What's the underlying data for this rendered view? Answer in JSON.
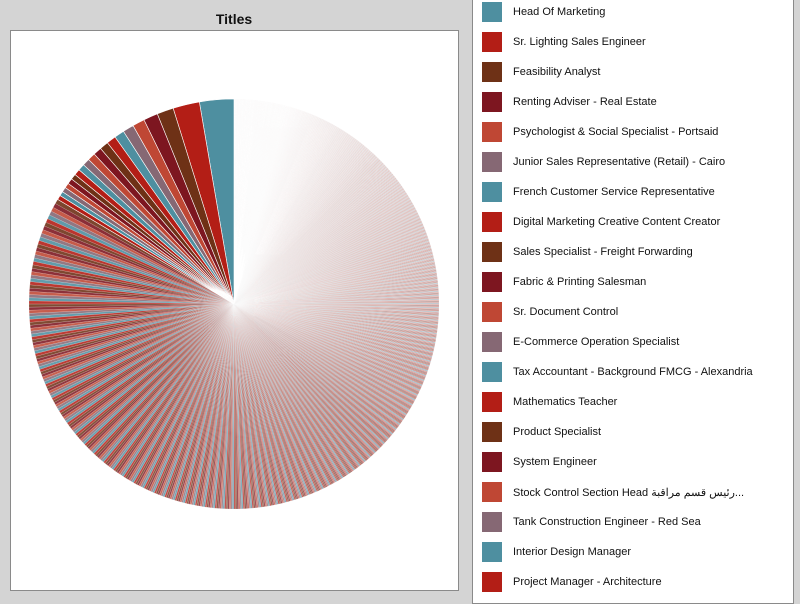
{
  "chart_data": {
    "type": "pie",
    "title": "Titles",
    "start_angle_deg": 0,
    "direction": "counterclockwise",
    "palette": [
      "#4e8fa0",
      "#b31e16",
      "#6e3116",
      "#7d1620",
      "#bf4734",
      "#866874"
    ],
    "leading_slices": [
      {
        "label": "Head Of Marketing",
        "value": 3.1
      },
      {
        "label": "Sr. Lighting Sales Engineer",
        "value": 2.4
      },
      {
        "label": "Feasibility Analyst",
        "value": 1.5
      },
      {
        "label": "Renting Adviser - Real Estate",
        "value": 1.3
      },
      {
        "label": "Psychologist & Social Specialist - Portsaid",
        "value": 1.1
      },
      {
        "label": "Junior Sales Representative (Retail) - Cairo",
        "value": 1.0
      },
      {
        "label": "French Customer Service Representative",
        "value": 0.9
      },
      {
        "label": "Digital Marketing Creative Content Creator",
        "value": 0.85
      },
      {
        "label": "Sales Specialist - Freight Forwarding",
        "value": 0.8
      },
      {
        "label": "Fabric & Printing Salesman",
        "value": 0.75
      },
      {
        "label": "Sr. Document Control",
        "value": 0.7
      },
      {
        "label": "E-Commerce Operation Specialist",
        "value": 0.65
      },
      {
        "label": "Tax Accountant - Background FMCG - Alexandria",
        "value": 0.6
      },
      {
        "label": "Mathematics Teacher",
        "value": 0.55
      },
      {
        "label": "Product Specialist",
        "value": 0.5
      },
      {
        "label": "System Engineer",
        "value": 0.5
      },
      {
        "label": "Stock Control Section Head رئيس قسم مراقبة...",
        "value": 0.45
      },
      {
        "label": "Tank Construction Engineer - Red Sea",
        "value": 0.45
      },
      {
        "label": "Interior Design Manager",
        "value": 0.4
      },
      {
        "label": "Project Manager - Architecture",
        "value": 0.4
      }
    ],
    "minor_slices": {
      "count": 1500,
      "note_hidden": false,
      "first_value": 0.42,
      "last_value": 0.012
    },
    "legend": {
      "placement": "right",
      "entries": [
        "Head Of Marketing",
        "Sr. Lighting Sales Engineer",
        "Feasibility Analyst",
        "Renting Adviser - Real Estate",
        "Psychologist & Social Specialist - Portsaid",
        "Junior Sales Representative (Retail) - Cairo",
        "French Customer Service Representative",
        "Digital Marketing Creative Content Creator",
        "Sales Specialist - Freight Forwarding",
        "Fabric & Printing Salesman",
        "Sr. Document Control",
        "E-Commerce Operation Specialist",
        "Tax Accountant - Background FMCG - Alexandria",
        "Mathematics Teacher",
        "Product Specialist",
        "System Engineer",
        "Stock Control Section Head رئيس قسم مراقبة...",
        "Tank Construction Engineer - Red Sea",
        "Interior Design Manager",
        "Project Manager - Architecture"
      ]
    }
  }
}
